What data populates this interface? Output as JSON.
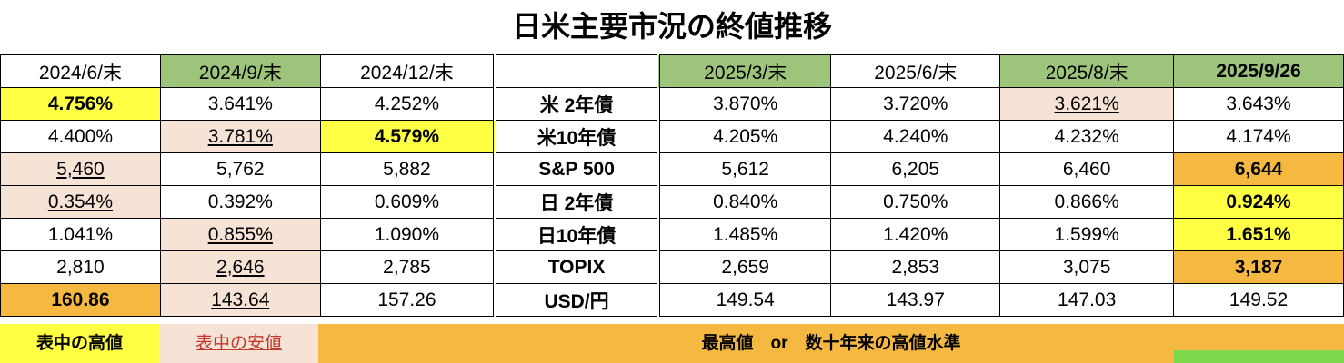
{
  "title": "日米主要市況の終値推移",
  "headers": [
    "2024/6/末",
    "2024/9/末",
    "2024/12/末",
    "",
    "2025/3/末",
    "2025/6/末",
    "2025/8/末",
    "2025/9/26"
  ],
  "rows": [
    {
      "label": "米 2年債",
      "values": [
        "4.756%",
        "3.641%",
        "4.252%",
        "3.870%",
        "3.720%",
        "3.621%",
        "3.643%"
      ]
    },
    {
      "label": "米10年債",
      "values": [
        "4.400%",
        "3.781%",
        "4.579%",
        "4.205%",
        "4.240%",
        "4.232%",
        "4.174%"
      ]
    },
    {
      "label": "S&P 500",
      "values": [
        "5,460",
        "5,762",
        "5,882",
        "5,612",
        "6,205",
        "6,460",
        "6,644"
      ]
    },
    {
      "label": "日 2年債",
      "values": [
        "0.354%",
        "0.392%",
        "0.609%",
        "0.840%",
        "0.750%",
        "0.866%",
        "0.924%"
      ]
    },
    {
      "label": "日10年債",
      "values": [
        "1.041%",
        "0.855%",
        "1.090%",
        "1.485%",
        "1.420%",
        "1.599%",
        "1.651%"
      ]
    },
    {
      "label": "TOPIX",
      "values": [
        "2,810",
        "2,646",
        "2,785",
        "2,659",
        "2,853",
        "3,075",
        "3,187"
      ]
    },
    {
      "label": "USD/円",
      "values": [
        "160.86",
        "143.64",
        "157.26",
        "149.54",
        "143.97",
        "147.03",
        "149.52"
      ]
    }
  ],
  "legend": {
    "high": "表中の高値",
    "low": "表中の安値",
    "record": "最高値　or　数十年来の高値水準"
  },
  "colors": {
    "header_green": "#9cc47a",
    "high_yellow": "#ffff44",
    "low_pink": "#f7e2d6",
    "record_orange": "#f5b942",
    "red_text": "#e33b2e",
    "navy_text": "#1f3a7a"
  }
}
